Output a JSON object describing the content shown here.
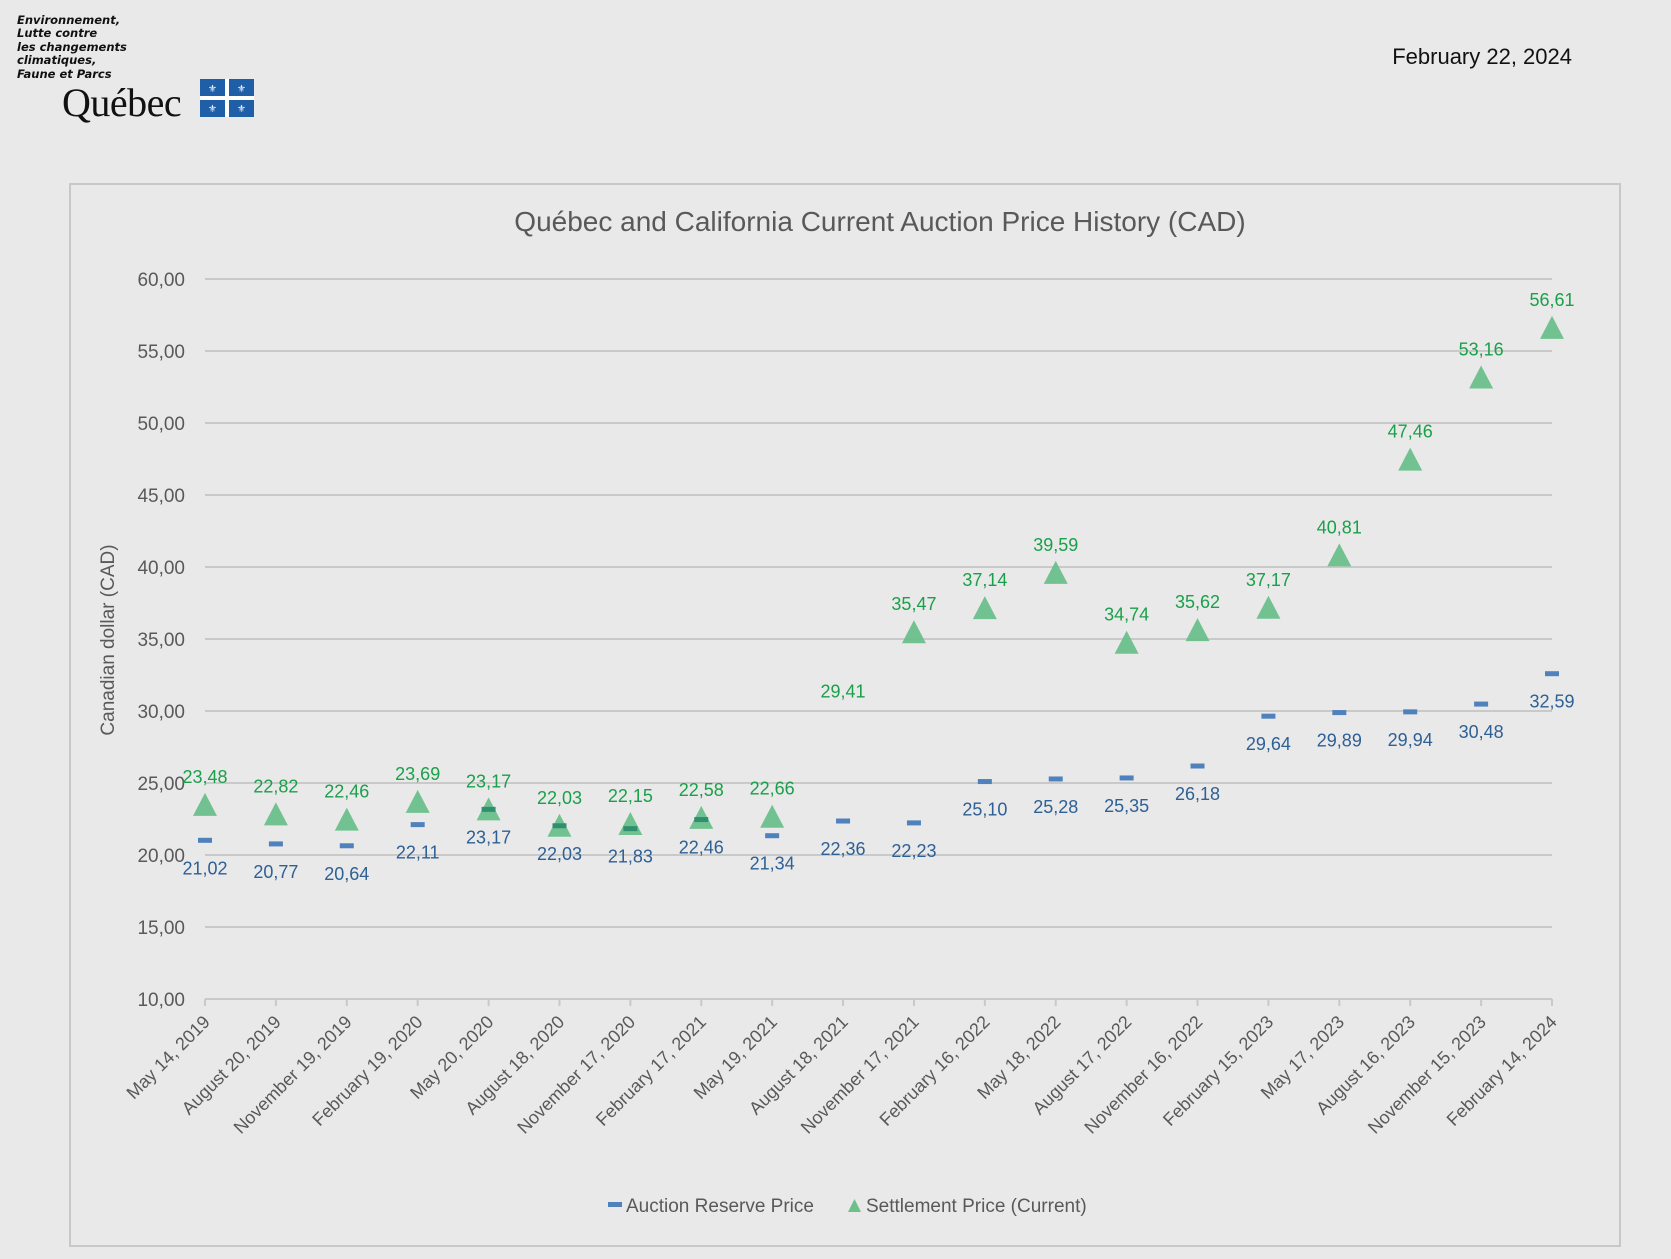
{
  "header": {
    "ministry": "Environnement,\nLutte contre\nles changements\nclimatiques,\nFaune et Parcs",
    "wordmark": "Québec",
    "date": "February 22, 2024"
  },
  "colors": {
    "reserve": "#4f81bd",
    "reserve_label": "#2e6095",
    "settlement": "#6cc08c",
    "settlement_label": "#1aa04a",
    "overlap": "#2f8f6f",
    "grid": "#c9c9c9",
    "text": "#595959",
    "flag": "#1f5fa8"
  },
  "chart_data": {
    "type": "scatter",
    "title": "Québec and California Current Auction Price History (CAD)",
    "xlabel": "",
    "ylabel": "Canadian dollar (CAD)",
    "ylim": [
      10,
      60
    ],
    "yticks": [
      "10,00",
      "15,00",
      "20,00",
      "25,00",
      "30,00",
      "35,00",
      "40,00",
      "45,00",
      "50,00",
      "55,00",
      "60,00"
    ],
    "ytick_values": [
      10,
      15,
      20,
      25,
      30,
      35,
      40,
      45,
      50,
      55,
      60
    ],
    "grid": true,
    "legend_position": "bottom",
    "categories": [
      "May 14, 2019",
      "August 20, 2019",
      "November 19, 2019",
      "February 19, 2020",
      "May 20, 2020",
      "August 18, 2020",
      "November 17, 2020",
      "February 17, 2021",
      "May 19, 2021",
      "August 18, 2021",
      "November 17, 2021",
      "February 16, 2022",
      "May 18, 2022",
      "August 17, 2022",
      "November 16, 2022",
      "February 15, 2023",
      "May 17, 2023",
      "August 16, 2023",
      "November 15, 2023",
      "February 14, 2024"
    ],
    "series": [
      {
        "name": "Auction Reserve Price",
        "marker": "dash",
        "values": [
          21.02,
          20.77,
          20.64,
          22.11,
          23.17,
          22.03,
          21.83,
          22.46,
          21.34,
          22.36,
          22.23,
          25.1,
          25.28,
          25.35,
          26.18,
          29.64,
          29.89,
          29.94,
          30.48,
          32.59
        ],
        "labels": [
          "21,02",
          "20,77",
          "20,64",
          "22,11",
          "23,17",
          "22,03",
          "21,83",
          "22,46",
          "21,34",
          "22,36",
          "22,23",
          "25,10",
          "25,28",
          "25,35",
          "26,18",
          "29,64",
          "29,89",
          "29,94",
          "30,48",
          "32,59"
        ]
      },
      {
        "name": "Settlement Price (Current)",
        "marker": "triangle",
        "values": [
          23.48,
          22.82,
          22.46,
          23.69,
          23.17,
          22.03,
          22.15,
          22.58,
          22.66,
          null,
          35.47,
          37.14,
          39.59,
          34.74,
          35.62,
          37.17,
          40.81,
          47.46,
          53.16,
          56.61
        ],
        "labels": [
          "23,48",
          "22,82",
          "22,46",
          "23,69",
          "23,17",
          "22,03",
          "22,15",
          "22,58",
          "22,66",
          "29,41",
          "35,47",
          "37,14",
          "39,59",
          "34,74",
          "35,62",
          "37,17",
          "40,81",
          "47,46",
          "53,16",
          "56,61"
        ],
        "label_values": [
          23.48,
          22.82,
          22.46,
          23.69,
          23.17,
          22.03,
          22.15,
          22.58,
          22.66,
          29.41,
          35.47,
          37.14,
          39.59,
          34.74,
          35.62,
          37.17,
          40.81,
          47.46,
          53.16,
          56.61
        ]
      }
    ]
  }
}
